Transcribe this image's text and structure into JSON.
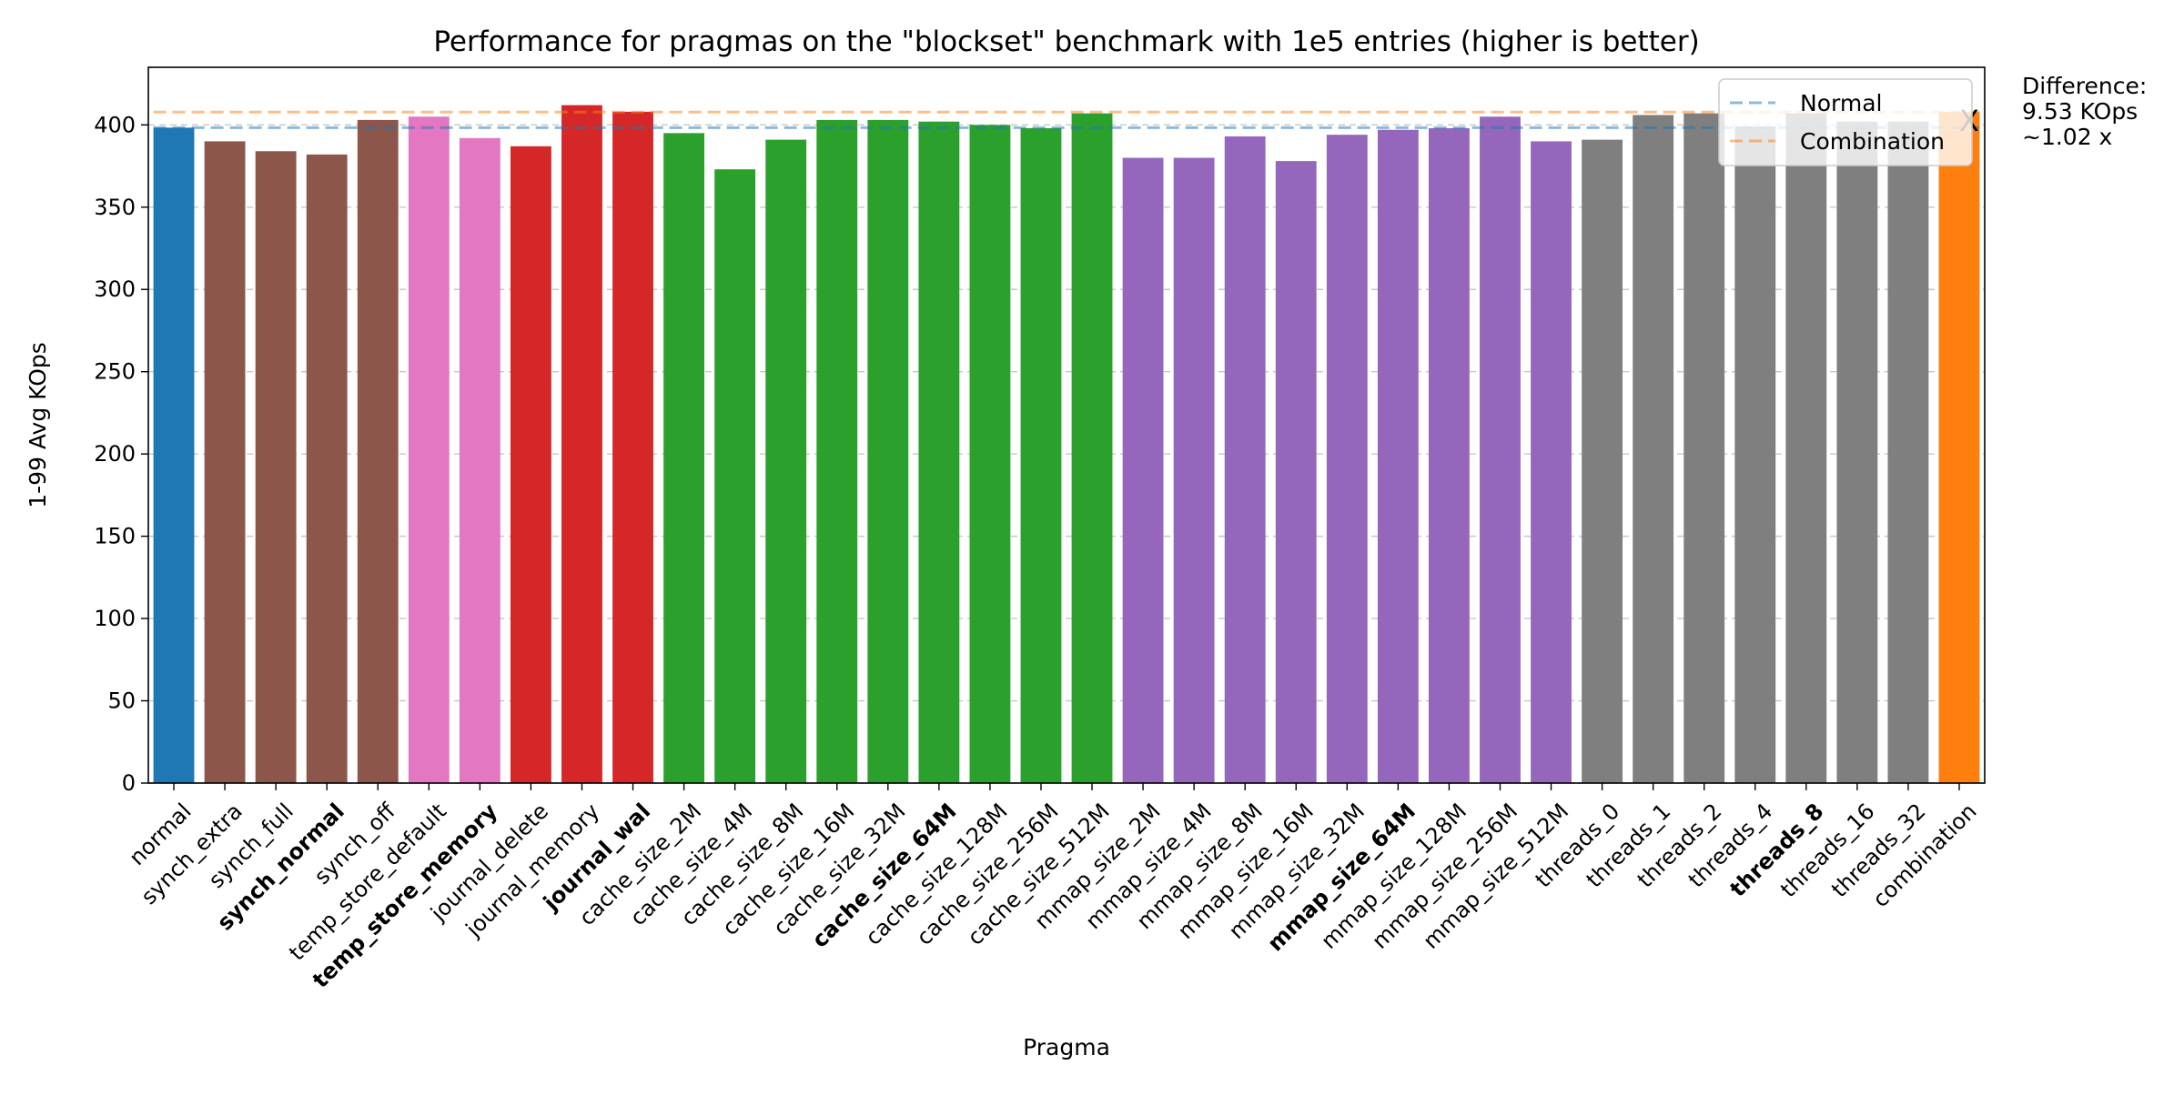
{
  "chart_data": {
    "type": "bar",
    "title": "Performance for pragmas on the \"blockset\" benchmark with 1e5 entries (higher is better)",
    "xlabel": "Pragma",
    "ylabel": "1-99 Avg KOps",
    "ylim": [
      0,
      435
    ],
    "yticks": [
      0,
      50,
      100,
      150,
      200,
      250,
      300,
      350,
      400
    ],
    "grid": "y-dashed",
    "legend_position": "top-right",
    "categories": [
      "normal",
      "synch_extra",
      "synch_full",
      "synch_normal",
      "synch_off",
      "temp_store_default",
      "temp_store_memory",
      "journal_delete",
      "journal_memory",
      "journal_wal",
      "cache_size_2M",
      "cache_size_4M",
      "cache_size_8M",
      "cache_size_16M",
      "cache_size_32M",
      "cache_size_64M",
      "cache_size_128M",
      "cache_size_256M",
      "cache_size_512M",
      "mmap_size_2M",
      "mmap_size_4M",
      "mmap_size_8M",
      "mmap_size_16M",
      "mmap_size_32M",
      "mmap_size_64M",
      "mmap_size_128M",
      "mmap_size_256M",
      "mmap_size_512M",
      "threads_0",
      "threads_1",
      "threads_2",
      "threads_4",
      "threads_8",
      "threads_16",
      "threads_32",
      "combination"
    ],
    "values": [
      398.3,
      390,
      384,
      382,
      403,
      405,
      392,
      387,
      412,
      408,
      395,
      373,
      391,
      403,
      403,
      402,
      400,
      398,
      407,
      380,
      380,
      393,
      378,
      394,
      397,
      398,
      405,
      390,
      391,
      406,
      407,
      399,
      407,
      402,
      402,
      407.8
    ],
    "bold_categories": [
      "synch_normal",
      "temp_store_memory",
      "journal_wal",
      "cache_size_64M",
      "mmap_size_64M",
      "threads_8"
    ],
    "bar_colors": [
      "#1f77b4",
      "#8c564b",
      "#8c564b",
      "#8c564b",
      "#8c564b",
      "#e377c2",
      "#e377c2",
      "#d62728",
      "#d62728",
      "#d62728",
      "#2ca02c",
      "#2ca02c",
      "#2ca02c",
      "#2ca02c",
      "#2ca02c",
      "#2ca02c",
      "#2ca02c",
      "#2ca02c",
      "#2ca02c",
      "#9467bd",
      "#9467bd",
      "#9467bd",
      "#9467bd",
      "#9467bd",
      "#9467bd",
      "#9467bd",
      "#9467bd",
      "#9467bd",
      "#7f7f7f",
      "#7f7f7f",
      "#7f7f7f",
      "#7f7f7f",
      "#7f7f7f",
      "#7f7f7f",
      "#7f7f7f",
      "#ff7f0e"
    ],
    "reference_lines": [
      {
        "name": "Normal",
        "value": 398.3,
        "color": "#1f77b4"
      },
      {
        "name": "Combination",
        "value": 407.8,
        "color": "#ff7f0e"
      }
    ],
    "difference_marker": "X",
    "annotation": [
      "Difference:",
      "9.53 KOps",
      "~1.02 x"
    ]
  }
}
